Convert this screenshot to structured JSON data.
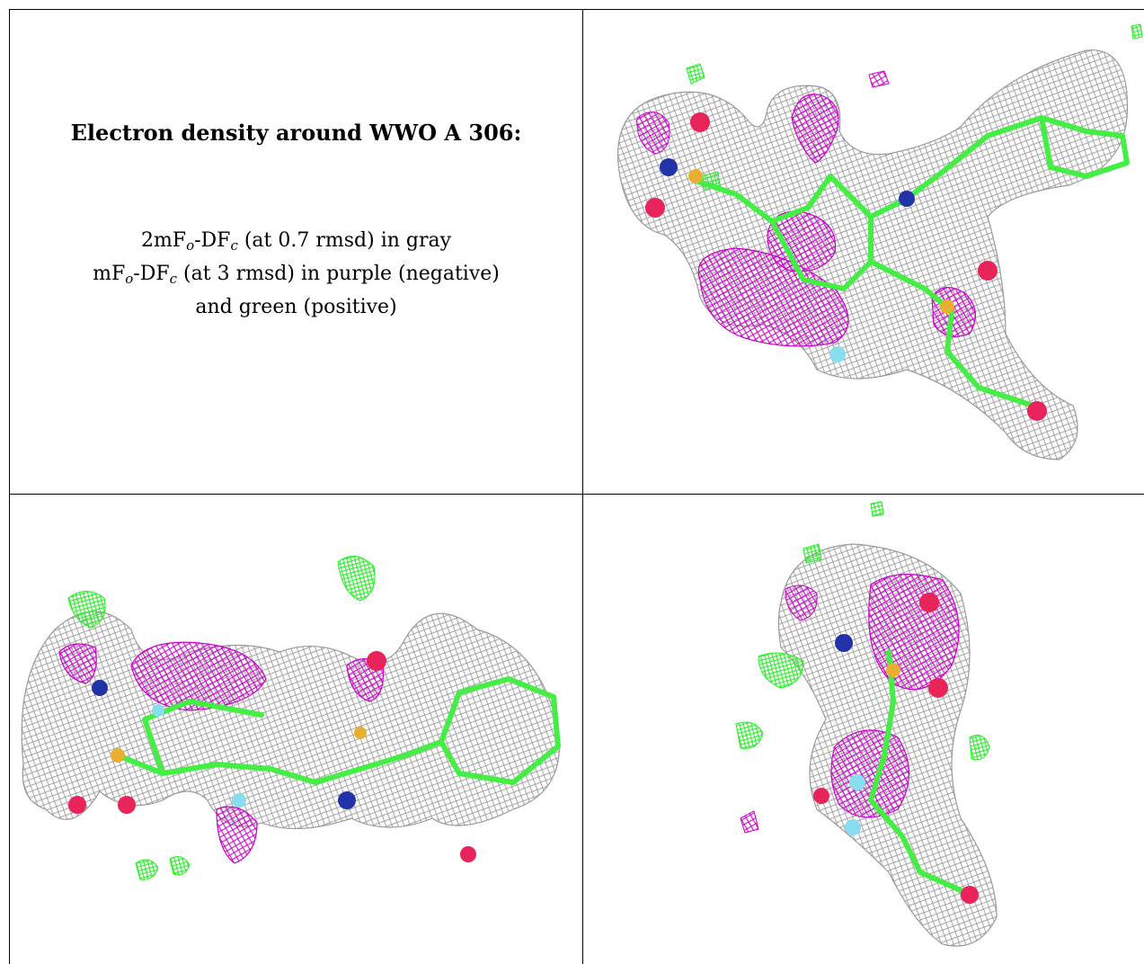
{
  "caption": {
    "title": "Electron density around WWO A 306:",
    "line1": {
      "pre": "2mF",
      "sub1": "o",
      "mid": "-DF",
      "sub2": "c",
      "post": " (at 0.7 rmsd) in gray"
    },
    "line2": {
      "pre": "mF",
      "sub1": "o",
      "mid": "-DF",
      "sub2": "c",
      "post": " (at 3 rmsd) in purple (negative)"
    },
    "line3": "and green (positive)"
  },
  "colors": {
    "mesh_2fofc": "#9a9a9a",
    "mesh_negative": "#cc00cc",
    "mesh_positive": "#22ee22",
    "carbon_stick": "#44ee44",
    "oxygen_sphere": "#e8245a",
    "nitrogen_sphere": "#2233aa",
    "sulfur_sphere": "#e8b030",
    "fluorine_sphere": "#88ddee"
  },
  "panels": [
    {
      "name": "view-1",
      "description_icon": "electron-density-render"
    },
    {
      "name": "view-2",
      "description_icon": "electron-density-render"
    },
    {
      "name": "view-3",
      "description_icon": "electron-density-render"
    }
  ]
}
